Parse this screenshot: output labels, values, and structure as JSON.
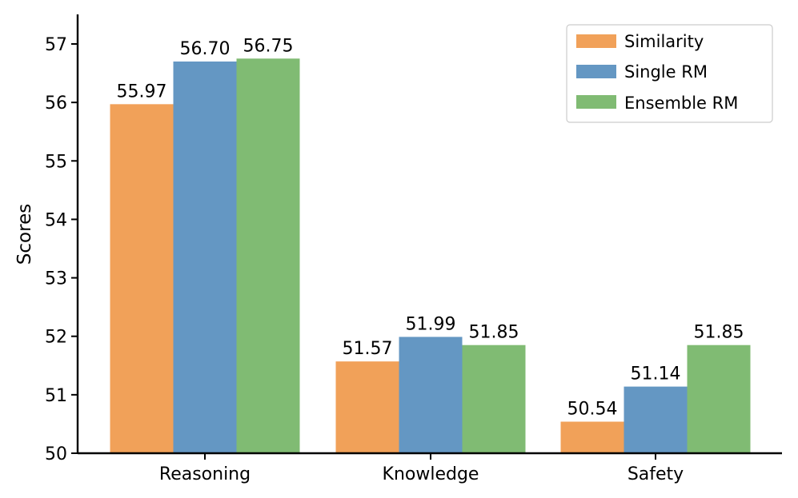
{
  "chart_data": {
    "type": "bar",
    "categories": [
      "Reasoning",
      "Knowledge",
      "Safety"
    ],
    "series": [
      {
        "name": "Similarity",
        "color": "#F1A159",
        "values": [
          55.97,
          51.57,
          50.54
        ],
        "labels": [
          "55.97",
          "51.57",
          "50.54"
        ]
      },
      {
        "name": "Single RM",
        "color": "#6497C3",
        "values": [
          56.7,
          51.99,
          51.14
        ],
        "labels": [
          "56.70",
          "51.99",
          "51.14"
        ]
      },
      {
        "name": "Ensemble RM",
        "color": "#80BB73",
        "values": [
          56.75,
          51.85,
          51.85
        ],
        "labels": [
          "56.75",
          "51.85",
          "51.85"
        ]
      }
    ],
    "title": "",
    "xlabel": "",
    "ylabel": "Scores",
    "ylim": [
      50,
      57.5
    ],
    "yticks": [
      "50",
      "51",
      "52",
      "53",
      "54",
      "55",
      "56",
      "57"
    ],
    "grid": false,
    "legend_position": "top-right"
  }
}
